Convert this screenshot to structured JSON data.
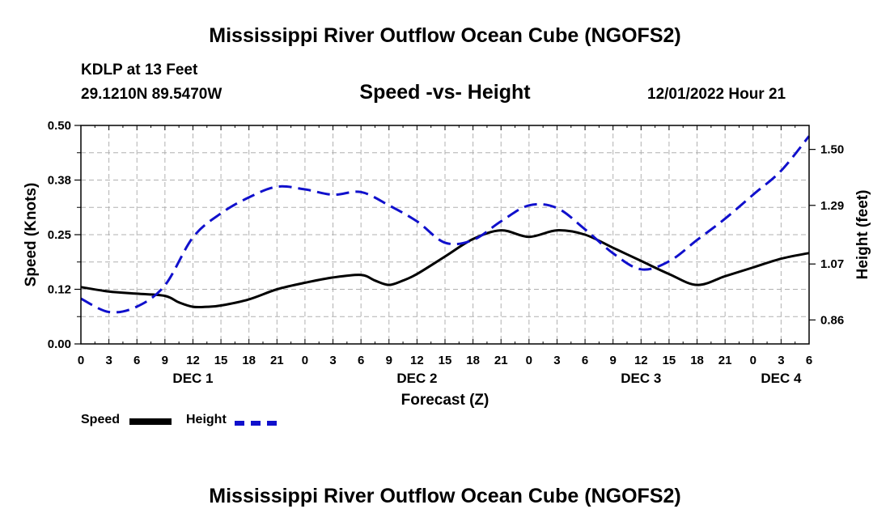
{
  "header": {
    "title": "Mississippi River Outflow Ocean Cube (NGOFS2)",
    "station": "KDLP at 13 Feet",
    "coords": "29.1210N  89.5470W",
    "subtitle": "Speed -vs- Height",
    "datetime": "12/01/2022 Hour 21"
  },
  "footer": {
    "title": "Mississippi River Outflow Ocean Cube (NGOFS2)"
  },
  "legend": {
    "speed_label": "Speed",
    "height_label": "Height"
  },
  "colors": {
    "speed": "#000000",
    "height": "#1010cc",
    "grid": "#b0b0b0"
  },
  "chart_data": {
    "type": "line",
    "title": "Speed -vs- Height",
    "xlabel": "Forecast (Z)",
    "ylabel": "Speed (Knots)",
    "y2label": "Height (feet)",
    "xlim": [
      0,
      78
    ],
    "ylim": [
      0,
      0.5
    ],
    "y2lim": [
      0.77,
      1.59
    ],
    "x_tick_labels": [
      "0",
      "3",
      "6",
      "9",
      "12",
      "15",
      "18",
      "21",
      "0",
      "3",
      "6",
      "9",
      "12",
      "15",
      "18",
      "21",
      "0",
      "3",
      "6",
      "9",
      "12",
      "15",
      "18",
      "21",
      "0",
      "3",
      "6"
    ],
    "y_ticks": [
      "0.00",
      "0.12",
      "0.25",
      "0.38",
      "0.50"
    ],
    "y_tick_values": [
      0,
      0.125,
      0.25,
      0.375,
      0.5
    ],
    "y2_ticks": [
      "0.86",
      "1.07",
      "1.29",
      "1.50"
    ],
    "y2_tick_values": [
      0.86,
      1.07,
      1.29,
      1.5
    ],
    "day_labels": [
      {
        "label": "DEC 1",
        "hour": 12
      },
      {
        "label": "DEC 2",
        "hour": 36
      },
      {
        "label": "DEC 3",
        "hour": 60
      },
      {
        "label": "DEC 4",
        "hour": 75
      }
    ],
    "series": [
      {
        "name": "Speed",
        "axis": "left",
        "style": "solid",
        "x": [
          0,
          3,
          6,
          9,
          10.5,
          12,
          13.5,
          15,
          18,
          21,
          24,
          27,
          30,
          31.5,
          33,
          34.5,
          36,
          39,
          42,
          45,
          48,
          51,
          54,
          57,
          60,
          63,
          66,
          69,
          72,
          75,
          78
        ],
        "values": [
          0.13,
          0.12,
          0.115,
          0.11,
          0.095,
          0.085,
          0.085,
          0.088,
          0.102,
          0.125,
          0.14,
          0.152,
          0.158,
          0.145,
          0.135,
          0.145,
          0.16,
          0.2,
          0.24,
          0.26,
          0.245,
          0.26,
          0.25,
          0.22,
          0.19,
          0.16,
          0.135,
          0.155,
          0.175,
          0.195,
          0.208
        ]
      },
      {
        "name": "Height",
        "axis": "right",
        "style": "dashed",
        "x": [
          0,
          3,
          6,
          9,
          12,
          15,
          18,
          21,
          24,
          27,
          30,
          33,
          36,
          39,
          42,
          45,
          48,
          51,
          54,
          57,
          60,
          63,
          66,
          69,
          72,
          75,
          78
        ],
        "values": [
          0.94,
          0.89,
          0.91,
          0.99,
          1.17,
          1.26,
          1.32,
          1.36,
          1.35,
          1.33,
          1.34,
          1.29,
          1.23,
          1.15,
          1.16,
          1.23,
          1.29,
          1.28,
          1.2,
          1.11,
          1.05,
          1.08,
          1.16,
          1.24,
          1.33,
          1.42,
          1.55
        ]
      }
    ]
  }
}
